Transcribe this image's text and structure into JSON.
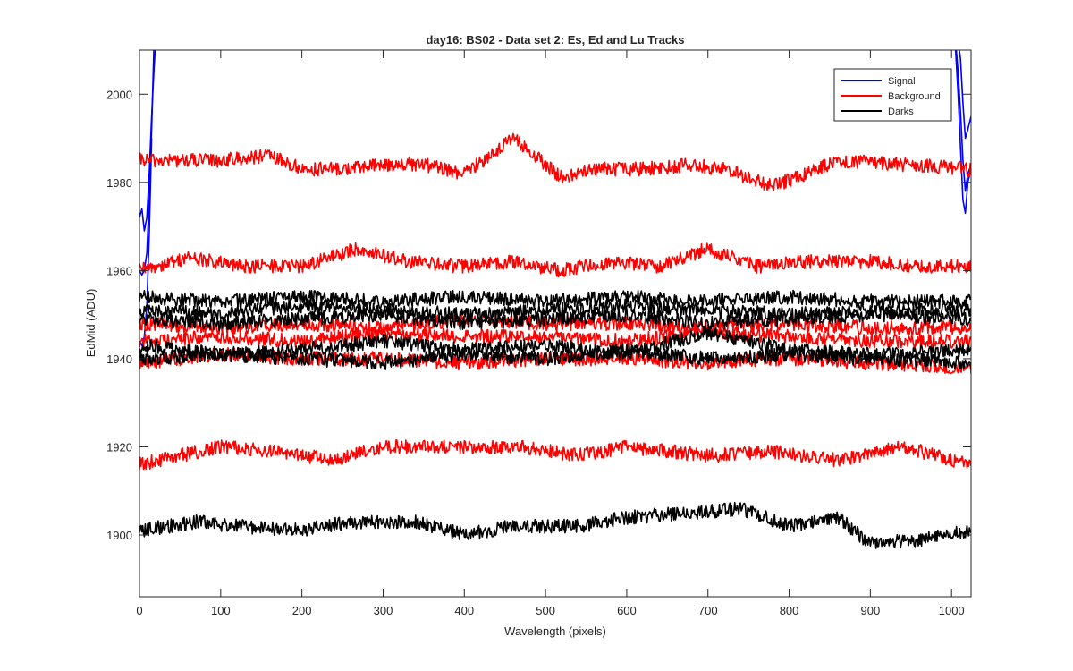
{
  "chart_data": {
    "type": "line",
    "title": "day16: BS02 - Data set 2: Es, Ed and Lu Tracks",
    "xlabel": "Wavelength (pixels)",
    "ylabel": "EdMid (ADU)",
    "xlim": [
      0,
      1024
    ],
    "ylim": [
      1886,
      2010
    ],
    "xticks": [
      0,
      100,
      200,
      300,
      400,
      500,
      600,
      700,
      800,
      900,
      1000
    ],
    "yticks": [
      1900,
      1920,
      1940,
      1960,
      1980,
      2000
    ],
    "grid": false,
    "legend_position": "top-right",
    "legend": [
      {
        "label": "Signal",
        "color": "#0000ff"
      },
      {
        "label": "Background",
        "color": "#ff0000"
      },
      {
        "label": "Darks",
        "color": "#000000"
      }
    ],
    "series": [
      {
        "group": "Signal",
        "color": "#0000ff",
        "x": [
          0,
          3,
          6,
          9,
          12,
          15,
          18,
          20
        ],
        "y": [
          1972,
          1974,
          1969,
          1972,
          1982,
          1995,
          2006,
          2012
        ]
      },
      {
        "group": "Signal",
        "color": "#0000ff",
        "x": [
          0,
          3,
          6,
          9,
          12,
          15,
          18
        ],
        "y": [
          1960,
          1959,
          1960,
          1964,
          1976,
          1992,
          2012
        ]
      },
      {
        "group": "Signal",
        "color": "#0000ff",
        "x": [
          0,
          3,
          6,
          9,
          12,
          15
        ],
        "y": [
          1944,
          1943,
          1945,
          1952,
          1968,
          1990
        ]
      },
      {
        "group": "Signal",
        "color": "#0000ff",
        "x": [
          1005,
          1008,
          1011,
          1014,
          1017,
          1020,
          1024
        ],
        "y": [
          2012,
          2005,
          1996,
          1985,
          1978,
          1982,
          1984
        ]
      },
      {
        "group": "Signal",
        "color": "#0000ff",
        "x": [
          1005,
          1008,
          1011,
          1014,
          1017,
          1020,
          1024
        ],
        "y": [
          2010,
          2000,
          1988,
          1976,
          1973,
          1980,
          1983
        ]
      },
      {
        "group": "Signal",
        "color": "#0000ff",
        "x": [
          1008,
          1011,
          1014,
          1017,
          1020,
          1024
        ],
        "y": [
          2012,
          2008,
          1998,
          1990,
          1992,
          1995
        ]
      },
      {
        "group": "Background",
        "color": "#ff0000",
        "x": [
          0,
          100,
          160,
          200,
          250,
          300,
          350,
          400,
          460,
          520,
          560,
          620,
          680,
          720,
          780,
          860,
          940,
          1024
        ],
        "y": [
          1985,
          1985,
          1986,
          1983,
          1983,
          1984,
          1984,
          1982,
          1990,
          1981,
          1983,
          1983,
          1984,
          1983,
          1979,
          1985,
          1984,
          1983
        ]
      },
      {
        "group": "Background",
        "color": "#ff0000",
        "x": [
          0,
          60,
          120,
          200,
          270,
          330,
          400,
          460,
          520,
          580,
          640,
          700,
          760,
          820,
          900,
          960,
          1024
        ],
        "y": [
          1960,
          1963,
          1961,
          1961,
          1965,
          1962,
          1961,
          1962,
          1960,
          1962,
          1961,
          1965,
          1961,
          1962,
          1962,
          1961,
          1961
        ]
      },
      {
        "group": "Background",
        "color": "#ff0000",
        "x": [
          0,
          100,
          200,
          300,
          400,
          500,
          600,
          700,
          800,
          900,
          1024
        ],
        "y": [
          1948,
          1947,
          1948,
          1947,
          1949,
          1948,
          1948,
          1947,
          1948,
          1947,
          1947
        ]
      },
      {
        "group": "Background",
        "color": "#ff0000",
        "x": [
          0,
          100,
          200,
          300,
          400,
          500,
          600,
          700,
          800,
          900,
          1024
        ],
        "y": [
          1944,
          1945,
          1944,
          1946,
          1945,
          1945,
          1944,
          1946,
          1945,
          1944,
          1944
        ]
      },
      {
        "group": "Background",
        "color": "#ff0000",
        "x": [
          0,
          100,
          200,
          300,
          400,
          500,
          600,
          700,
          800,
          900,
          1024
        ],
        "y": [
          1939,
          1941,
          1940,
          1940,
          1939,
          1940,
          1940,
          1939,
          1940,
          1939,
          1938
        ]
      },
      {
        "group": "Background",
        "color": "#ff0000",
        "x": [
          0,
          100,
          160,
          240,
          300,
          400,
          470,
          540,
          600,
          700,
          780,
          860,
          940,
          1024
        ],
        "y": [
          1916,
          1920,
          1919,
          1917,
          1920,
          1920,
          1920,
          1918,
          1920,
          1918,
          1919,
          1917,
          1920,
          1916
        ]
      },
      {
        "group": "Darks",
        "color": "#000000",
        "x": [
          0,
          100,
          200,
          300,
          400,
          500,
          600,
          700,
          800,
          900,
          1024
        ],
        "y": [
          1954,
          1953,
          1954,
          1953,
          1954,
          1953,
          1954,
          1953,
          1954,
          1953,
          1953
        ]
      },
      {
        "group": "Darks",
        "color": "#000000",
        "x": [
          0,
          100,
          200,
          300,
          400,
          500,
          600,
          700,
          800,
          900,
          1024
        ],
        "y": [
          1951,
          1950,
          1952,
          1951,
          1950,
          1951,
          1952,
          1951,
          1950,
          1951,
          1951
        ]
      },
      {
        "group": "Darks",
        "color": "#000000",
        "x": [
          0,
          100,
          200,
          300,
          400,
          500,
          600,
          700,
          800,
          900,
          1024
        ],
        "y": [
          1949,
          1948,
          1949,
          1950,
          1948,
          1949,
          1950,
          1948,
          1949,
          1950,
          1949
        ]
      },
      {
        "group": "Darks",
        "color": "#000000",
        "x": [
          0,
          100,
          200,
          300,
          400,
          500,
          600,
          700,
          800,
          900,
          1024
        ],
        "y": [
          1943,
          1941,
          1942,
          1944,
          1942,
          1943,
          1941,
          1946,
          1942,
          1941,
          1942
        ]
      },
      {
        "group": "Darks",
        "color": "#000000",
        "x": [
          0,
          100,
          200,
          300,
          400,
          500,
          600,
          700,
          800,
          900,
          1024
        ],
        "y": [
          1940,
          1941,
          1940,
          1939,
          1941,
          1940,
          1942,
          1940,
          1941,
          1940,
          1939
        ]
      },
      {
        "group": "Darks",
        "color": "#000000",
        "x": [
          0,
          70,
          120,
          200,
          260,
          340,
          400,
          460,
          540,
          600,
          680,
          740,
          800,
          860,
          900,
          960,
          1024
        ],
        "y": [
          1901,
          1903,
          1902,
          1901,
          1903,
          1903,
          1900,
          1902,
          1902,
          1904,
          1905,
          1906,
          1902,
          1904,
          1898,
          1899,
          1901
        ]
      }
    ]
  }
}
